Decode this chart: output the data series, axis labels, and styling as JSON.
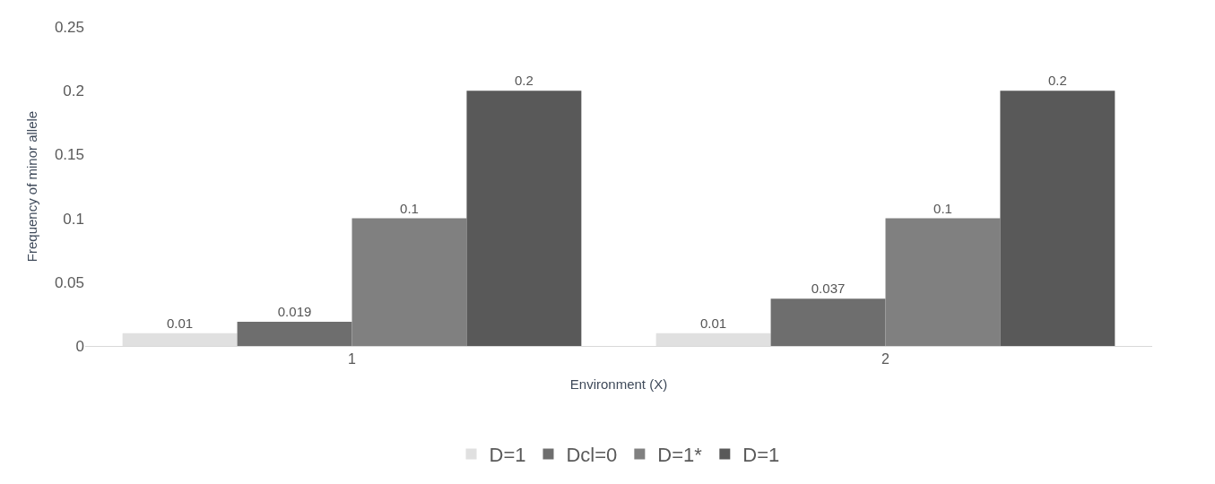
{
  "chart_data": {
    "type": "bar",
    "xlabel": "Environment (X)",
    "ylabel": "Frequency of minor allele",
    "categories": [
      "1",
      "2"
    ],
    "series": [
      {
        "name": "D=1",
        "color": "#e0e0e0",
        "values": [
          0.01,
          0.01
        ]
      },
      {
        "name": "Dcl=0",
        "color": "#6e6e6e",
        "values": [
          0.019,
          0.037
        ]
      },
      {
        "name": "D=1*",
        "color": "#808080",
        "values": [
          0.1,
          0.1
        ]
      },
      {
        "name": "D=1",
        "color": "#595959",
        "values": [
          0.2,
          0.2
        ]
      }
    ],
    "ylim": [
      0,
      0.25
    ],
    "yticks": [
      0,
      0.05,
      0.1,
      0.15,
      0.2,
      0.25
    ],
    "legend": "bottom",
    "data_labels": true
  }
}
